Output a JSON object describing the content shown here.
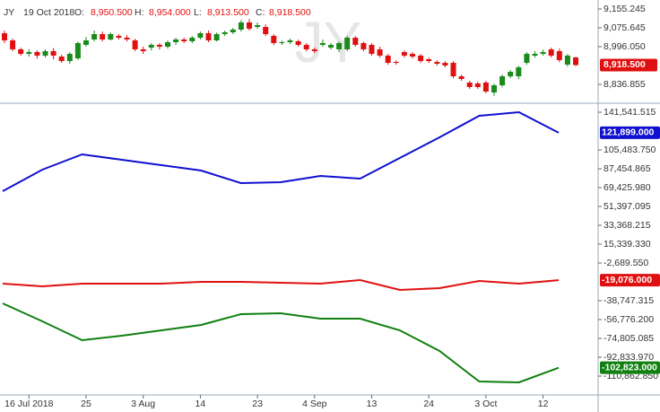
{
  "header": {
    "symbol": "JY",
    "date": "19 Oct 2018",
    "open_label": "O:",
    "open": "8,950.500",
    "high_label": "H:",
    "high": "8,954.000",
    "low_label": "L:",
    "low": "8,913.500",
    "close_label": "C:",
    "close": "8,918.500"
  },
  "chart_data": [
    {
      "type": "candlestick",
      "watermark": "JY",
      "categories": [
        null,
        null,
        null,
        "16 Jul 2018",
        null,
        null,
        null,
        null,
        null,
        null,
        "25",
        null,
        null,
        null,
        null,
        null,
        null,
        "3 Aug",
        null,
        null,
        null,
        null,
        null,
        null,
        "14",
        null,
        null,
        null,
        null,
        null,
        null,
        "23",
        null,
        null,
        null,
        null,
        null,
        null,
        "4 Sep",
        null,
        null,
        null,
        null,
        null,
        null,
        "13",
        null,
        null,
        null,
        null,
        null,
        null,
        "24",
        null,
        null,
        null,
        null,
        null,
        null,
        "3 Oct",
        null,
        null,
        null,
        null,
        null,
        null,
        "12",
        null,
        null,
        null,
        null
      ],
      "open": [
        9052.9,
        9022.6,
        8984.8,
        8965.8,
        8973.4,
        8958.3,
        8977.2,
        8954.5,
        8935.4,
        8946.8,
        9003.7,
        9026.4,
        9049.1,
        9026.4,
        9041.6,
        9034.0,
        9022.6,
        8984.8,
        8992.3,
        9003.7,
        8996.1,
        9015.0,
        9026.4,
        9018.8,
        9034.0,
        9052.9,
        9022.6,
        9049.1,
        9056.7,
        9068.1,
        9098.4,
        9079.4,
        9079.4,
        9041.6,
        9011.3,
        9015.0,
        9018.8,
        9003.7,
        8984.8,
        9003.7,
        8992.3,
        8984.8,
        8984.8,
        9034.0,
        9011.3,
        9003.7,
        8984.8,
        8958.3,
        8931.6,
        8973.4,
        8965.8,
        8958.3,
        8943.0,
        8931.6,
        8927.9,
        8927.9,
        8871.0,
        8844.5,
        8840.7,
        8844.5,
        8802.8,
        8833.1,
        8871.0,
        8871.0,
        8927.9,
        8958.3,
        8965.8,
        8984.8,
        8977.2,
        8920.3,
        8950.5
      ],
      "high": [
        9064,
        9030,
        8992,
        8985,
        8980,
        8985,
        8990,
        8962,
        8973,
        9018,
        9037,
        9064,
        9060,
        9056,
        9049,
        9045,
        9030,
        8996,
        9011,
        9011,
        9022,
        9034,
        9034,
        9041,
        9060,
        9064,
        9056,
        9064,
        9075,
        9109,
        9113,
        9098,
        9090,
        9049,
        9022,
        9030,
        9026,
        9011,
        8992,
        9026,
        9011,
        9018,
        9041,
        9041,
        9018,
        9011,
        8996,
        8965,
        8939,
        8980,
        8973,
        8965,
        8950,
        8939,
        8935,
        8935,
        8878,
        8852,
        8848,
        8852,
        8840,
        8878,
        8897,
        8916,
        8973,
        8977,
        8984,
        8992,
        8988,
        8965,
        8954
      ],
      "low": [
        9011,
        8977,
        8958,
        8954,
        8946,
        8950,
        8943,
        8928,
        8924,
        8939,
        8996,
        9018,
        9018,
        9022,
        9026,
        9018,
        8977,
        8965,
        8980,
        8984,
        8988,
        9003,
        9011,
        9011,
        9026,
        9015,
        9018,
        9041,
        9049,
        9060,
        9064,
        9071,
        9041,
        9003,
        9003,
        9007,
        8996,
        8977,
        8969,
        8996,
        8984,
        8973,
        8977,
        8996,
        8977,
        8958,
        8950,
        8920,
        8920,
        8950,
        8946,
        8927,
        8927,
        8916,
        8909,
        8863,
        8852,
        8818,
        8818,
        8799,
        8788,
        8825,
        8863,
        8859,
        8920,
        8950,
        8958,
        8950,
        8931,
        8912,
        8913.5
      ],
      "close": [
        9022.6,
        8984.8,
        8965.8,
        8973.4,
        8958.3,
        8977.2,
        8958.3,
        8935.4,
        8965.8,
        9011.3,
        9022.6,
        9049.1,
        9026.4,
        9049.1,
        9034.0,
        9026.4,
        8984.8,
        8977.2,
        9003.7,
        8996.1,
        9015.0,
        9026.4,
        9018.8,
        9034.0,
        9052.9,
        9022.6,
        9049.1,
        9056.7,
        9068.1,
        9098.4,
        9071.9,
        9087.0,
        9049.1,
        9011.3,
        9015.0,
        9022.6,
        9003.7,
        8984.8,
        8977.2,
        9011.3,
        9003.7,
        9011.3,
        9034.0,
        9003.7,
        8984.8,
        8965.8,
        8958.3,
        8927.9,
        8927.9,
        8958.3,
        8954.5,
        8935.4,
        8935.4,
        8924.1,
        8916.5,
        8871.0,
        8859.6,
        8825.5,
        8825.5,
        8806.6,
        8833.1,
        8871.0,
        8890.0,
        8908.9,
        8965.8,
        8965.8,
        8973.4,
        8958.3,
        8939.2,
        8958.3,
        8918.5
      ],
      "last_value_label": "8,918.500",
      "up_color": "#1a8a1a",
      "down_color": "#e01010",
      "ylim": [
        8757.3,
        9193.1
      ],
      "yticks": [
        {
          "value": 9155.245,
          "label": "9,155.245"
        },
        {
          "value": 9075.645,
          "label": "9,075.645"
        },
        {
          "value": 8996.05,
          "label": "8,996.050"
        },
        {
          "value": 8836.855,
          "label": "8,836.855"
        }
      ]
    },
    {
      "type": "line",
      "categories": [
        null,
        null,
        null,
        null,
        null,
        null,
        null,
        null,
        null,
        null,
        null,
        null,
        null,
        null,
        null
      ],
      "series": [
        {
          "color": "#1010d0",
          "values": [
            65994,
            86597,
            101192,
            96041,
            90890,
            85739,
            73720,
            74578,
            80588,
            78012,
            97758,
            117504,
            138107,
            141541,
            121899
          ],
          "value_labels": [
            null,
            null,
            null,
            null,
            null,
            null,
            null,
            null,
            null,
            null,
            null,
            null,
            null,
            null,
            "121,899.000"
          ]
        },
        {
          "color": "#e01010",
          "values": [
            -22432,
            -25008,
            -22432,
            -22432,
            -22432,
            -20715,
            -20715,
            -21574,
            -22432,
            -18998,
            -28442,
            -26725,
            -19857,
            -22432,
            -19076
          ],
          "value_labels": [
            null,
            null,
            null,
            null,
            null,
            null,
            null,
            null,
            null,
            null,
            null,
            null,
            null,
            null,
            "-19,076.000"
          ]
        },
        {
          "color": "#108010",
          "values": [
            -41320,
            -58490,
            -76518,
            -72226,
            -67075,
            -61924,
            -51622,
            -50763,
            -55914,
            -55914,
            -67075,
            -86821,
            -116010,
            -116869,
            -102823
          ],
          "value_labels": [
            null,
            null,
            null,
            null,
            null,
            null,
            null,
            null,
            null,
            null,
            null,
            null,
            null,
            null,
            "-102,823.000"
          ]
        }
      ],
      "ylim": [
        -128892,
        150127
      ],
      "yticks": [
        {
          "value": 141541.515,
          "label": "141,541.515"
        },
        {
          "value": 105483.75,
          "label": "105,483.750"
        },
        {
          "value": 87454.865,
          "label": "87,454.865"
        },
        {
          "value": 69425.98,
          "label": "69,425.980"
        },
        {
          "value": 51397.095,
          "label": "51,397.095"
        },
        {
          "value": 33368.215,
          "label": "33,368.215"
        },
        {
          "value": 15339.33,
          "label": "15,339.330"
        },
        {
          "value": -2689.55,
          "label": "-2,689.550"
        },
        {
          "value": -38747.315,
          "label": "-38,747.315"
        },
        {
          "value": -56776.2,
          "label": "-56,776.200"
        },
        {
          "value": -74805.085,
          "label": "-74,805.085"
        },
        {
          "value": -92833.97,
          "label": "-92,833.970"
        },
        {
          "value": -110862.85,
          "label": "-110,862.850"
        }
      ]
    }
  ]
}
